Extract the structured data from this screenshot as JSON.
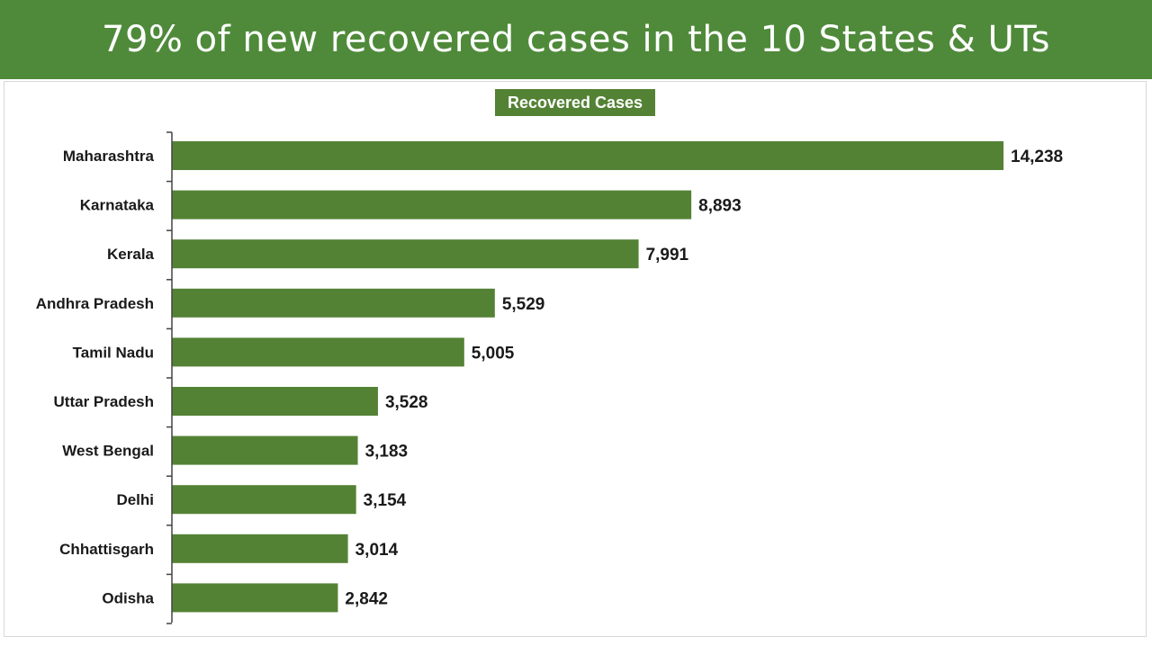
{
  "banner": {
    "title": "79% of new recovered cases in the 10 States & UTs"
  },
  "colors": {
    "banner": "#4f8a3a",
    "bar": "#548235",
    "legend_bg": "#548235"
  },
  "chart_data": {
    "type": "bar",
    "orientation": "horizontal",
    "series": [
      {
        "name": "Recovered Cases",
        "values": [
          14238,
          8893,
          7991,
          5529,
          5005,
          3528,
          3183,
          3154,
          3014,
          2842
        ]
      }
    ],
    "categories": [
      "Maharashtra",
      "Karnataka",
      "Kerala",
      "Andhra Pradesh",
      "Tamil Nadu",
      "Uttar Pradesh",
      "West Bengal",
      "Delhi",
      "Chhattisgarh",
      "Odisha"
    ],
    "data_labels": [
      "14,238",
      "8,893",
      "7,991",
      "5,529",
      "5,005",
      "3,528",
      "3,183",
      "3,154",
      "3,014",
      "2,842"
    ],
    "legend": "top-center",
    "grid": false,
    "xlim": [
      0,
      14238
    ]
  }
}
